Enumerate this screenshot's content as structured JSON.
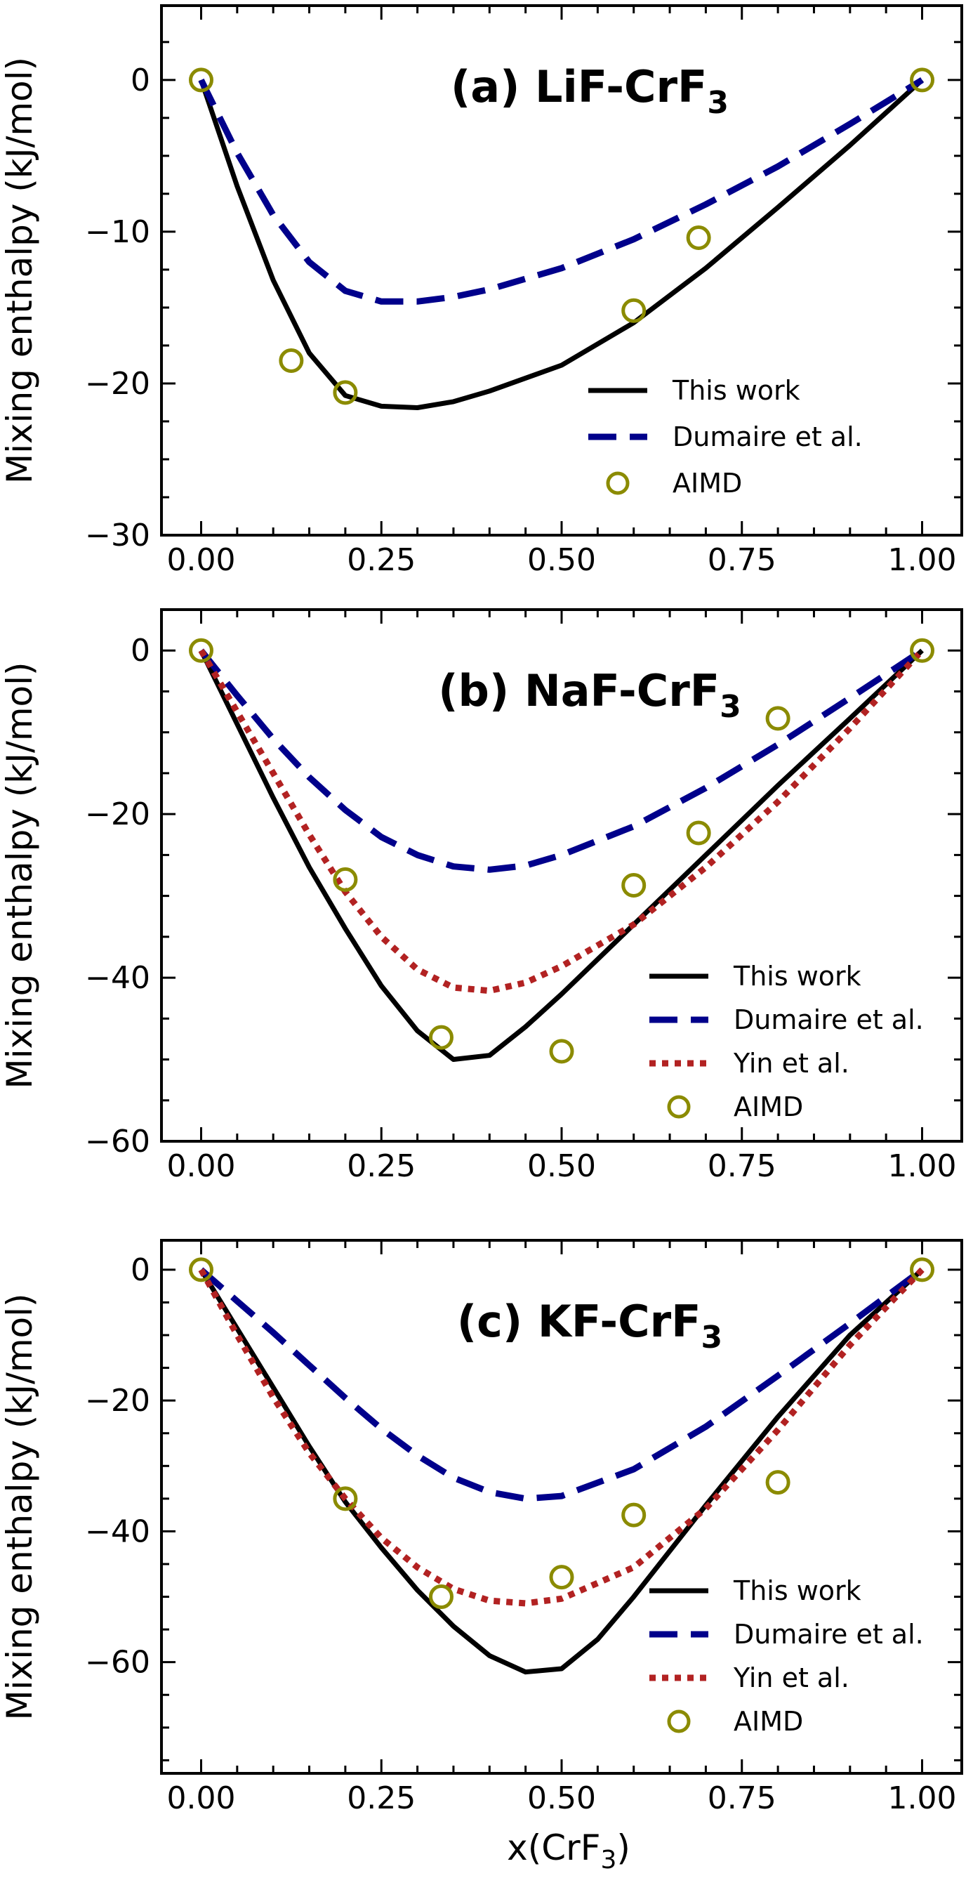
{
  "figure": {
    "shared_xlabel": "x(CrF",
    "shared_xlabel_sub": "3",
    "shared_xlabel_close": ")"
  },
  "chart_data": [
    {
      "type": "line",
      "title": "(a) LiF-CrF",
      "title_sub": "3",
      "xlabel": "",
      "ylabel": "Mixing enthalpy (kJ/mol)",
      "xlim": [
        -0.055,
        1.055
      ],
      "ylim": [
        -30,
        4.9
      ],
      "xticks": [
        0.0,
        0.25,
        0.5,
        0.75,
        1.0
      ],
      "xtick_labels": [
        "0.00",
        "0.25",
        "0.50",
        "0.75",
        "1.00"
      ],
      "yticks": [
        -30,
        -20,
        -10,
        0
      ],
      "ytick_labels": [
        "−30",
        "−20",
        "−10",
        "0"
      ],
      "grid": false,
      "legend_position": "lower right",
      "series": [
        {
          "name": "This work",
          "style": "solid",
          "color": "#000000",
          "x": [
            0.0,
            0.05,
            0.1,
            0.15,
            0.2,
            0.25,
            0.3,
            0.35,
            0.4,
            0.5,
            0.6,
            0.7,
            0.8,
            0.9,
            1.0
          ],
          "y": [
            0.0,
            -7.0,
            -13.2,
            -18.0,
            -20.8,
            -21.5,
            -21.6,
            -21.2,
            -20.5,
            -18.8,
            -16.0,
            -12.4,
            -8.4,
            -4.3,
            0.0
          ]
        },
        {
          "name": "Dumaire et al.",
          "style": "dashed",
          "color": "#00008B",
          "x": [
            0.0,
            0.05,
            0.1,
            0.15,
            0.2,
            0.25,
            0.3,
            0.35,
            0.4,
            0.5,
            0.6,
            0.7,
            0.8,
            0.9,
            1.0
          ],
          "y": [
            0.0,
            -4.8,
            -8.9,
            -12.0,
            -13.9,
            -14.6,
            -14.6,
            -14.3,
            -13.8,
            -12.4,
            -10.5,
            -8.2,
            -5.7,
            -2.9,
            0.0
          ]
        },
        {
          "name": "AIMD",
          "style": "marker",
          "color": "#8B8B00",
          "x": [
            0.0,
            0.125,
            0.2,
            0.6,
            0.69,
            1.0
          ],
          "y": [
            0.0,
            -18.5,
            -20.6,
            -15.2,
            -10.4,
            0.0
          ]
        }
      ]
    },
    {
      "type": "line",
      "title": "(b) NaF-CrF",
      "title_sub": "3",
      "xlabel": "",
      "ylabel": "Mixing enthalpy (kJ/mol)",
      "xlim": [
        -0.055,
        1.055
      ],
      "ylim": [
        -60,
        5
      ],
      "xticks": [
        0.0,
        0.25,
        0.5,
        0.75,
        1.0
      ],
      "xtick_labels": [
        "0.00",
        "0.25",
        "0.50",
        "0.75",
        "1.00"
      ],
      "yticks": [
        -60,
        -40,
        -20,
        0
      ],
      "ytick_labels": [
        "−60",
        "−40",
        "−20",
        "0"
      ],
      "grid": false,
      "legend_position": "lower right",
      "series": [
        {
          "name": "This work",
          "style": "solid",
          "color": "#000000",
          "x": [
            0.0,
            0.05,
            0.1,
            0.15,
            0.2,
            0.25,
            0.3,
            0.35,
            0.4,
            0.45,
            0.5,
            0.6,
            0.7,
            0.8,
            0.9,
            1.0
          ],
          "y": [
            0.0,
            -9.0,
            -18.0,
            -26.5,
            -34.0,
            -41.0,
            -46.5,
            -50.0,
            -49.5,
            -46.0,
            -42.0,
            -33.5,
            -25.0,
            -16.5,
            -8.3,
            0.0
          ]
        },
        {
          "name": "Dumaire et al.",
          "style": "dashed",
          "color": "#00008B",
          "x": [
            0.0,
            0.05,
            0.1,
            0.15,
            0.2,
            0.25,
            0.3,
            0.35,
            0.4,
            0.45,
            0.5,
            0.6,
            0.7,
            0.8,
            0.9,
            1.0
          ],
          "y": [
            0.0,
            -5.5,
            -10.8,
            -15.5,
            -19.5,
            -22.8,
            -25.0,
            -26.4,
            -26.8,
            -26.3,
            -25.0,
            -21.5,
            -16.8,
            -11.5,
            -5.8,
            0.0
          ]
        },
        {
          "name": "Yin et al.",
          "style": "dotted",
          "color": "#B22222",
          "x": [
            0.0,
            0.05,
            0.1,
            0.15,
            0.2,
            0.25,
            0.3,
            0.35,
            0.4,
            0.45,
            0.5,
            0.6,
            0.7,
            0.8,
            0.9,
            1.0
          ],
          "y": [
            0.0,
            -7.5,
            -15.0,
            -22.5,
            -29.5,
            -35.0,
            -39.0,
            -41.2,
            -41.6,
            -40.6,
            -38.6,
            -33.5,
            -26.5,
            -18.5,
            -9.5,
            0.0
          ]
        },
        {
          "name": "AIMD",
          "style": "marker",
          "color": "#8B8B00",
          "x": [
            0.0,
            0.2,
            0.333,
            0.5,
            0.6,
            0.69,
            0.8,
            1.0
          ],
          "y": [
            0.0,
            -28.0,
            -47.3,
            -49.0,
            -28.7,
            -22.3,
            -8.3,
            0.0
          ]
        }
      ]
    },
    {
      "type": "line",
      "title": "(c) KF-CrF",
      "title_sub": "3",
      "xlabel": "x(CrF3)",
      "ylabel": "Mixing enthalpy (kJ/mol)",
      "xlim": [
        -0.055,
        1.055
      ],
      "ylim": [
        -77,
        4.5
      ],
      "xticks": [
        0.0,
        0.25,
        0.5,
        0.75,
        1.0
      ],
      "xtick_labels": [
        "0.00",
        "0.25",
        "0.50",
        "0.75",
        "1.00"
      ],
      "yticks": [
        -60,
        -40,
        -20,
        0
      ],
      "ytick_labels": [
        "−60",
        "−40",
        "−20",
        "0"
      ],
      "grid": false,
      "legend_position": "lower right",
      "series": [
        {
          "name": "This work",
          "style": "solid",
          "color": "#000000",
          "x": [
            0.0,
            0.05,
            0.1,
            0.15,
            0.2,
            0.25,
            0.3,
            0.35,
            0.4,
            0.45,
            0.5,
            0.55,
            0.6,
            0.7,
            0.8,
            0.9,
            1.0
          ],
          "y": [
            0.0,
            -9.0,
            -18.0,
            -27.0,
            -35.5,
            -42.5,
            -49.0,
            -54.5,
            -59.0,
            -61.5,
            -61.0,
            -56.5,
            -50.0,
            -36.0,
            -22.5,
            -10.0,
            0.0
          ]
        },
        {
          "name": "Dumaire et al.",
          "style": "dashed",
          "color": "#00008B",
          "x": [
            0.0,
            0.05,
            0.1,
            0.15,
            0.2,
            0.25,
            0.3,
            0.35,
            0.4,
            0.45,
            0.5,
            0.6,
            0.7,
            0.8,
            0.9,
            1.0
          ],
          "y": [
            0.0,
            -4.8,
            -9.6,
            -14.6,
            -19.6,
            -24.3,
            -28.4,
            -31.8,
            -34.0,
            -35.0,
            -34.6,
            -30.5,
            -24.0,
            -16.2,
            -8.2,
            0.0
          ]
        },
        {
          "name": "Yin et al.",
          "style": "dotted",
          "color": "#B22222",
          "x": [
            0.0,
            0.05,
            0.1,
            0.15,
            0.2,
            0.25,
            0.3,
            0.35,
            0.4,
            0.45,
            0.5,
            0.6,
            0.7,
            0.8,
            0.9,
            1.0
          ],
          "y": [
            0.0,
            -10.0,
            -19.5,
            -28.0,
            -35.0,
            -41.0,
            -45.5,
            -48.8,
            -50.6,
            -51.0,
            -50.3,
            -45.5,
            -36.5,
            -24.5,
            -11.5,
            0.0
          ]
        },
        {
          "name": "AIMD",
          "style": "marker",
          "color": "#8B8B00",
          "x": [
            0.0,
            0.2,
            0.333,
            0.5,
            0.6,
            0.8,
            1.0
          ],
          "y": [
            0.0,
            -35.0,
            -50.0,
            -47.0,
            -37.5,
            -32.5,
            0.0
          ]
        }
      ]
    }
  ]
}
